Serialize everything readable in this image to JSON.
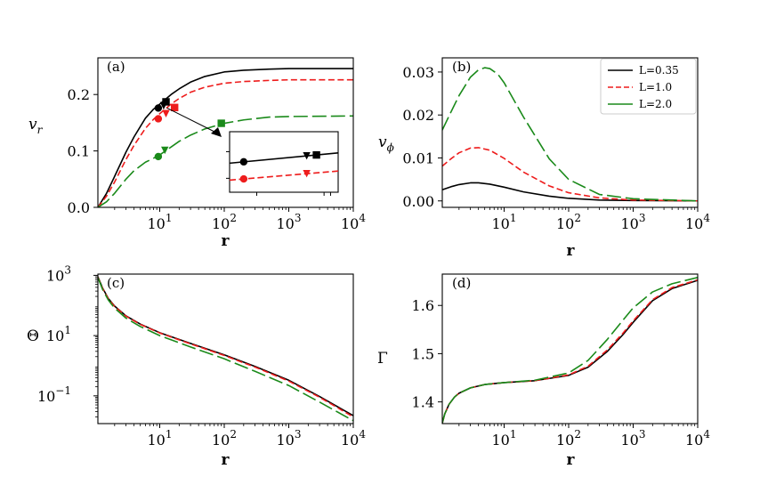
{
  "chart_data": [
    {
      "id": "a",
      "type": "line",
      "panel_label": "(a)",
      "xlabel": "r",
      "ylabel": "v",
      "ylabel_sub": "r",
      "xscale": "log",
      "yscale": "linear",
      "xlim": [
        1.1,
        10000
      ],
      "ylim": [
        0.0,
        0.265
      ],
      "x_ticks": [
        10,
        100,
        1000,
        10000
      ],
      "x_tick_labels": [
        "10",
        "10",
        "10",
        "10"
      ],
      "x_tick_exps": [
        "1",
        "2",
        "3",
        "4"
      ],
      "y_ticks": [
        0.0,
        0.1,
        0.2
      ],
      "y_tick_labels": [
        "0.0",
        "0.1",
        "0.2"
      ],
      "series": [
        {
          "name": "L=0.35",
          "color": "#000000",
          "dash": "solid",
          "x": [
            1.1,
            1.5,
            2,
            3,
            4,
            6,
            8,
            10,
            15,
            20,
            30,
            50,
            100,
            200,
            500,
            1000,
            10000
          ],
          "y": [
            0.0,
            0.025,
            0.055,
            0.098,
            0.125,
            0.158,
            0.174,
            0.183,
            0.2,
            0.21,
            0.222,
            0.232,
            0.24,
            0.243,
            0.245,
            0.246,
            0.246
          ]
        },
        {
          "name": "L=1.0",
          "color": "#ee1c1c",
          "dash": "dashed",
          "x": [
            1.1,
            1.5,
            2,
            3,
            4,
            6,
            8,
            10,
            15,
            20,
            30,
            50,
            100,
            200,
            500,
            1000,
            10000
          ],
          "y": [
            0.0,
            0.02,
            0.045,
            0.085,
            0.11,
            0.14,
            0.156,
            0.166,
            0.183,
            0.193,
            0.204,
            0.213,
            0.22,
            0.223,
            0.225,
            0.226,
            0.226
          ]
        },
        {
          "name": "L=2.0",
          "color": "#1a8a1a",
          "dash": "longdash",
          "x": [
            1.1,
            1.5,
            2,
            3,
            4,
            6,
            8,
            10,
            15,
            20,
            30,
            50,
            100,
            200,
            500,
            1000,
            10000
          ],
          "y": [
            0.0,
            0.01,
            0.025,
            0.05,
            0.065,
            0.08,
            0.087,
            0.093,
            0.107,
            0.117,
            0.128,
            0.139,
            0.149,
            0.155,
            0.16,
            0.161,
            0.162
          ]
        }
      ],
      "markers": [
        {
          "series": 0,
          "shape": "circle",
          "x": 9.5,
          "y": 0.176
        },
        {
          "series": 0,
          "shape": "triangle",
          "x": 11.5,
          "y": 0.18
        },
        {
          "series": 0,
          "shape": "square",
          "x": 12.5,
          "y": 0.187
        },
        {
          "series": 1,
          "shape": "circle",
          "x": 9.5,
          "y": 0.157
        },
        {
          "series": 1,
          "shape": "triangle",
          "x": 12.5,
          "y": 0.166
        },
        {
          "series": 1,
          "shape": "square",
          "x": 17,
          "y": 0.177
        },
        {
          "series": 2,
          "shape": "circle",
          "x": 9.5,
          "y": 0.09
        },
        {
          "series": 2,
          "shape": "triangle",
          "x": 12,
          "y": 0.101
        },
        {
          "series": 2,
          "shape": "square",
          "x": 90,
          "y": 0.149
        }
      ],
      "inset": {
        "series": [
          {
            "color": "#000000",
            "dash": "solid",
            "y": [
              0.35,
              0.52
            ]
          },
          {
            "color": "#ee1c1c",
            "dash": "dashed",
            "y": [
              0.65,
              0.8
            ]
          }
        ],
        "markers": [
          {
            "series": 0,
            "shape": "circle",
            "t": 0.13
          },
          {
            "series": 0,
            "shape": "triangle",
            "t": 0.71
          },
          {
            "series": 0,
            "shape": "square",
            "t": 0.8
          },
          {
            "series": 1,
            "shape": "circle",
            "t": 0.13
          },
          {
            "series": 1,
            "shape": "triangle",
            "t": 0.71
          }
        ]
      }
    },
    {
      "id": "b",
      "type": "line",
      "panel_label": "(b)",
      "xlabel": "r",
      "ylabel": "v",
      "ylabel_sub": "ϕ",
      "xscale": "log",
      "yscale": "linear",
      "xlim": [
        1.1,
        10000
      ],
      "ylim": [
        -0.0015,
        0.0333
      ],
      "x_ticks": [
        10,
        100,
        1000,
        10000
      ],
      "x_tick_labels": [
        "10",
        "10",
        "10",
        "10"
      ],
      "x_tick_exps": [
        "1",
        "2",
        "3",
        "4"
      ],
      "y_ticks": [
        0.0,
        0.01,
        0.02,
        0.03
      ],
      "y_tick_labels": [
        "0.00",
        "0.01",
        "0.02",
        "0.03"
      ],
      "legend": {
        "position": "top-right",
        "entries": [
          "L=0.35",
          "L=1.0",
          "L=2.0"
        ]
      },
      "series": [
        {
          "name": "L=0.35",
          "color": "#000000",
          "dash": "solid",
          "x": [
            1.1,
            1.5,
            2,
            3,
            4,
            6,
            10,
            20,
            50,
            100,
            300,
            1000,
            10000
          ],
          "y": [
            0.0026,
            0.0033,
            0.0038,
            0.0042,
            0.0042,
            0.0039,
            0.0032,
            0.0021,
            0.0011,
            0.0006,
            0.0002,
            0.0001,
            0.0
          ]
        },
        {
          "name": "L=1.0",
          "color": "#ee1c1c",
          "dash": "dashed",
          "x": [
            1.1,
            1.5,
            2,
            3,
            4,
            6,
            10,
            20,
            50,
            100,
            300,
            1000,
            10000
          ],
          "y": [
            0.0081,
            0.0098,
            0.0112,
            0.0123,
            0.0124,
            0.0118,
            0.0099,
            0.0067,
            0.0035,
            0.0019,
            0.0007,
            0.0002,
            0.0
          ]
        },
        {
          "name": "L=2.0",
          "color": "#1a8a1a",
          "dash": "longdash",
          "x": [
            1.1,
            1.5,
            2,
            3,
            4,
            5,
            6,
            8,
            10,
            20,
            50,
            100,
            300,
            1000,
            10000
          ],
          "y": [
            0.0165,
            0.0207,
            0.0245,
            0.0288,
            0.0305,
            0.031,
            0.0308,
            0.0295,
            0.0275,
            0.0195,
            0.0098,
            0.005,
            0.0015,
            0.0005,
            0.0
          ]
        }
      ]
    },
    {
      "id": "c",
      "type": "line",
      "panel_label": "(c)",
      "xlabel": "r",
      "ylabel": "Θ",
      "xscale": "log",
      "yscale": "log",
      "xlim": [
        1.1,
        10000
      ],
      "ylim": [
        0.012,
        1100
      ],
      "x_ticks": [
        10,
        100,
        1000,
        10000
      ],
      "x_tick_labels": [
        "10",
        "10",
        "10",
        "10"
      ],
      "x_tick_exps": [
        "1",
        "2",
        "3",
        "4"
      ],
      "y_ticks": [
        0.1,
        10,
        1000
      ],
      "y_tick_labels": [
        "10",
        "10",
        "10"
      ],
      "y_tick_exps": [
        "−1",
        "1",
        "3"
      ],
      "series": [
        {
          "name": "L=0.35",
          "color": "#000000",
          "dash": "solid",
          "x": [
            1.1,
            1.3,
            1.6,
            2,
            3,
            5,
            10,
            30,
            100,
            300,
            1000,
            3000,
            10000
          ],
          "y": [
            900,
            380,
            170,
            95,
            45,
            24,
            12.5,
            5.5,
            2.3,
            0.95,
            0.33,
            0.095,
            0.022
          ]
        },
        {
          "name": "L=1.0",
          "color": "#ee1c1c",
          "dash": "dashed",
          "x": [
            1.1,
            1.3,
            1.6,
            2,
            3,
            5,
            10,
            30,
            100,
            300,
            1000,
            3000,
            10000
          ],
          "y": [
            880,
            370,
            165,
            92,
            44,
            23.5,
            12.2,
            5.3,
            2.2,
            0.9,
            0.31,
            0.09,
            0.02
          ]
        },
        {
          "name": "L=2.0",
          "color": "#1a8a1a",
          "dash": "longdash",
          "x": [
            1.1,
            1.3,
            1.6,
            2,
            3,
            5,
            10,
            30,
            100,
            300,
            1000,
            3000,
            10000
          ],
          "y": [
            850,
            340,
            150,
            82,
            38,
            20,
            10,
            4.2,
            1.7,
            0.65,
            0.22,
            0.062,
            0.015
          ]
        }
      ]
    },
    {
      "id": "d",
      "type": "line",
      "panel_label": "(d)",
      "xlabel": "r",
      "ylabel": "Γ",
      "xscale": "log",
      "yscale": "linear",
      "xlim": [
        1.1,
        10000
      ],
      "ylim": [
        1.355,
        1.665
      ],
      "x_ticks": [
        10,
        100,
        1000,
        10000
      ],
      "x_tick_labels": [
        "10",
        "10",
        "10",
        "10"
      ],
      "x_tick_exps": [
        "1",
        "2",
        "3",
        "4"
      ],
      "y_ticks": [
        1.4,
        1.5,
        1.6
      ],
      "y_tick_labels": [
        "1.4",
        "1.5",
        "1.6"
      ],
      "series": [
        {
          "name": "L=0.35",
          "color": "#000000",
          "dash": "solid",
          "x": [
            1.1,
            1.2,
            1.4,
            1.7,
            2,
            3,
            5,
            10,
            30,
            100,
            200,
            400,
            700,
            1000,
            2000,
            4000,
            10000
          ],
          "y": [
            1.356,
            1.375,
            1.395,
            1.41,
            1.418,
            1.429,
            1.436,
            1.44,
            1.444,
            1.455,
            1.472,
            1.505,
            1.54,
            1.565,
            1.61,
            1.635,
            1.652
          ]
        },
        {
          "name": "L=1.0",
          "color": "#ee1c1c",
          "dash": "dashed",
          "x": [
            1.1,
            1.2,
            1.4,
            1.7,
            2,
            3,
            5,
            10,
            30,
            100,
            200,
            400,
            700,
            1000,
            2000,
            4000,
            10000
          ],
          "y": [
            1.356,
            1.375,
            1.395,
            1.41,
            1.418,
            1.429,
            1.436,
            1.44,
            1.444,
            1.456,
            1.474,
            1.508,
            1.543,
            1.568,
            1.612,
            1.637,
            1.653
          ]
        },
        {
          "name": "L=2.0",
          "color": "#1a8a1a",
          "dash": "longdash",
          "x": [
            1.1,
            1.2,
            1.4,
            1.7,
            2,
            3,
            5,
            10,
            30,
            100,
            200,
            400,
            700,
            1000,
            2000,
            4000,
            10000
          ],
          "y": [
            1.356,
            1.375,
            1.395,
            1.41,
            1.418,
            1.429,
            1.436,
            1.44,
            1.445,
            1.46,
            1.486,
            1.53,
            1.57,
            1.595,
            1.628,
            1.645,
            1.658
          ]
        }
      ]
    }
  ]
}
